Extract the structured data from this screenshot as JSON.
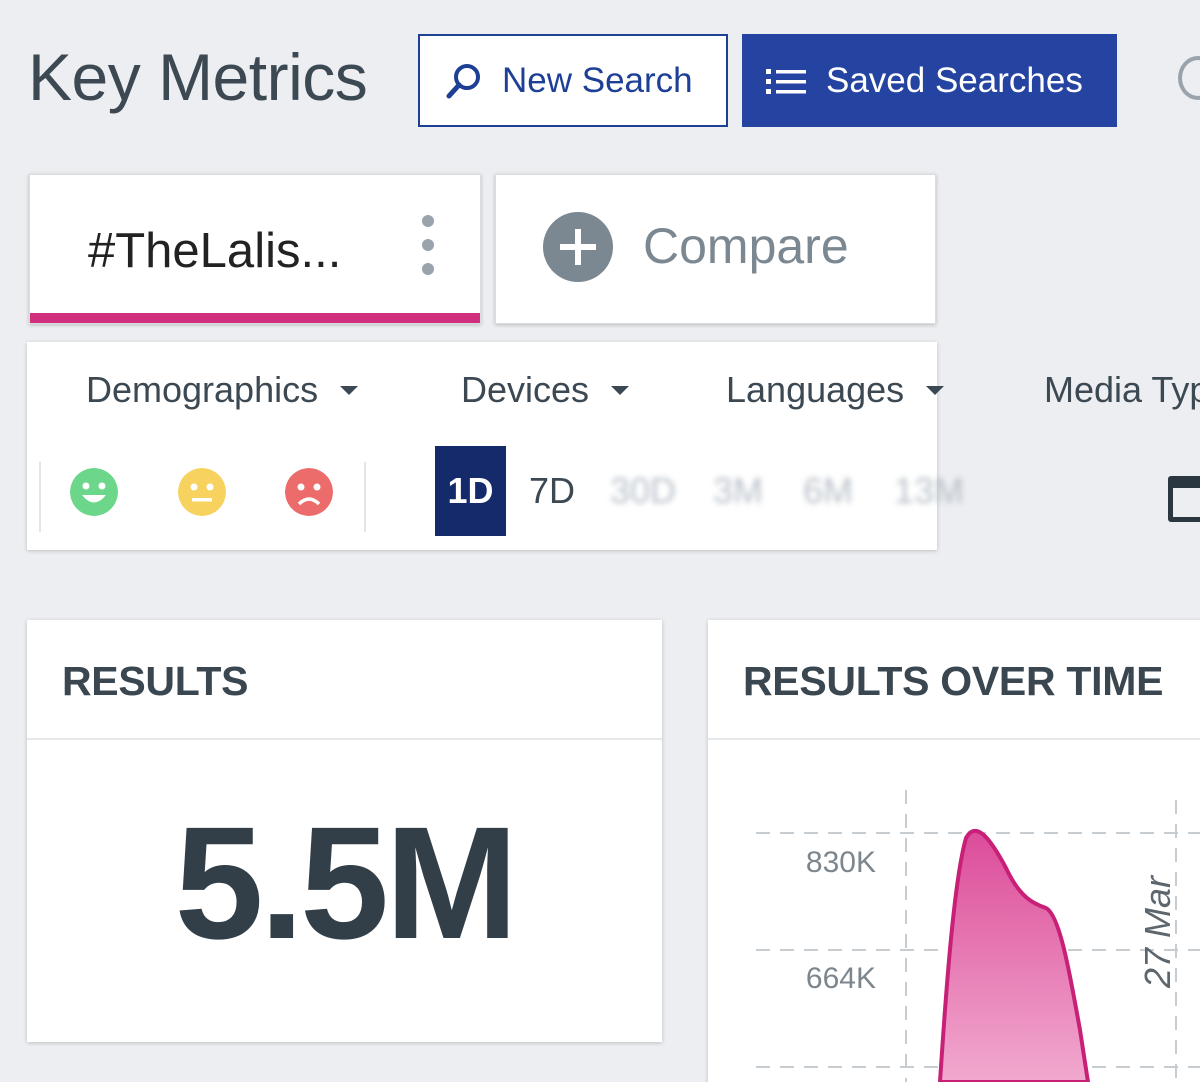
{
  "header": {
    "title": "Key Metrics",
    "new_search_label": "New Search",
    "saved_searches_label": "Saved Searches"
  },
  "tabs": {
    "search_label": "#TheLalis...",
    "compare_label": "Compare",
    "active_color": "#d12e7b"
  },
  "filters": {
    "dropdowns": [
      {
        "label": "Demographics"
      },
      {
        "label": "Devices"
      },
      {
        "label": "Languages"
      },
      {
        "label": "Media Typ"
      }
    ],
    "sentiments": [
      {
        "name": "positive",
        "color": "#6cd68a"
      },
      {
        "name": "neutral",
        "color": "#f8d25e"
      },
      {
        "name": "negative",
        "color": "#ec6b6b"
      }
    ],
    "ranges": [
      "1D",
      "7D",
      "30D",
      "3M",
      "6M",
      "13M"
    ],
    "selected_range": "1D"
  },
  "results_card": {
    "title": "RESULTS",
    "value": "5.5M"
  },
  "results_over_time_card": {
    "title": "RESULTS OVER TIME",
    "chart_data": {
      "type": "area",
      "title": "",
      "y_ticks": [
        "830K",
        "664K"
      ],
      "annotation": "27 Mar",
      "series": [
        {
          "color": "#d12e7b",
          "x_hours": [
            0,
            1,
            2,
            3,
            4,
            5,
            6
          ],
          "values": [
            0,
            780000,
            820000,
            720000,
            660000,
            420000,
            0
          ]
        }
      ]
    }
  },
  "colors": {
    "brand_blue": "#2543a0",
    "range_active": "#152a6a",
    "accent_pink": "#d12e7b"
  }
}
